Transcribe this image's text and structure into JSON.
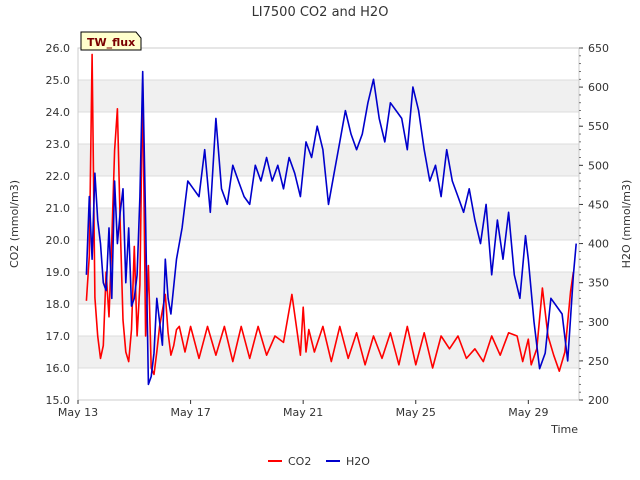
{
  "chart_data": {
    "type": "line",
    "title": "LI7500 CO2 and H2O",
    "badge": "TW_flux",
    "xlabel": "Time",
    "ylabel_left": "CO2 (mmol/m3)",
    "ylabel_right": "H2O (mmol/m3)",
    "x_ticks": [
      "May 13",
      "May 17",
      "May 21",
      "May 25",
      "May 29"
    ],
    "x_range_days": [
      13,
      30.8
    ],
    "y_left": {
      "min": 15.0,
      "max": 26.0,
      "ticks": [
        "15.0",
        "16.0",
        "17.0",
        "18.0",
        "19.0",
        "20.0",
        "21.0",
        "22.0",
        "23.0",
        "24.0",
        "25.0",
        "26.0"
      ]
    },
    "y_right": {
      "min": 200,
      "max": 650,
      "ticks": [
        "200",
        "250",
        "300",
        "350",
        "400",
        "450",
        "500",
        "550",
        "600",
        "650"
      ]
    },
    "grid": true,
    "legend_position": "bottom-center",
    "colors": {
      "co2": "#ff0000",
      "h2o": "#0000cc",
      "band": "#f0f0f0"
    },
    "series": [
      {
        "name": "CO2",
        "axis": "left",
        "x": [
          13.3,
          13.4,
          13.5,
          13.55,
          13.6,
          13.7,
          13.8,
          13.9,
          14.0,
          14.1,
          14.2,
          14.3,
          14.4,
          14.5,
          14.6,
          14.7,
          14.8,
          14.9,
          15.0,
          15.1,
          15.2,
          15.3,
          15.4,
          15.5,
          15.6,
          15.7,
          15.8,
          15.9,
          16.0,
          16.1,
          16.2,
          16.3,
          16.4,
          16.5,
          16.6,
          16.8,
          17.0,
          17.3,
          17.6,
          17.9,
          18.2,
          18.5,
          18.8,
          19.1,
          19.4,
          19.7,
          20.0,
          20.3,
          20.6,
          20.9,
          21.0,
          21.1,
          21.2,
          21.4,
          21.7,
          22.0,
          22.3,
          22.6,
          22.9,
          23.2,
          23.5,
          23.8,
          24.1,
          24.4,
          24.7,
          25.0,
          25.3,
          25.6,
          25.9,
          26.2,
          26.5,
          26.8,
          27.1,
          27.4,
          27.7,
          28.0,
          28.3,
          28.6,
          28.8,
          29.0,
          29.1,
          29.3,
          29.5,
          29.7,
          29.9,
          30.1,
          30.3,
          30.5,
          30.6
        ],
        "values": [
          18.1,
          19.5,
          25.8,
          22.0,
          18.2,
          17.0,
          16.3,
          16.7,
          19.0,
          17.6,
          20.0,
          22.8,
          24.1,
          20.5,
          17.5,
          16.5,
          16.2,
          17.2,
          19.8,
          17.0,
          18.6,
          24.9,
          17.0,
          19.2,
          16.0,
          15.8,
          16.5,
          17.3,
          17.8,
          18.3,
          17.1,
          16.4,
          16.7,
          17.2,
          17.3,
          16.5,
          17.3,
          16.3,
          17.3,
          16.4,
          17.3,
          16.2,
          17.3,
          16.3,
          17.3,
          16.4,
          17.0,
          16.8,
          18.3,
          16.4,
          17.9,
          16.5,
          17.2,
          16.5,
          17.3,
          16.2,
          17.3,
          16.3,
          17.1,
          16.1,
          17.0,
          16.3,
          17.1,
          16.1,
          17.3,
          16.1,
          17.1,
          16.0,
          17.0,
          16.6,
          17.0,
          16.3,
          16.6,
          16.2,
          17.0,
          16.4,
          17.1,
          17.0,
          16.2,
          16.9,
          16.1,
          16.6,
          18.5,
          17.0,
          16.4,
          15.9,
          16.5,
          18.4,
          19.0
        ]
      },
      {
        "name": "H2O",
        "axis": "right",
        "x": [
          13.3,
          13.4,
          13.5,
          13.6,
          13.7,
          13.8,
          13.9,
          14.0,
          14.1,
          14.2,
          14.3,
          14.4,
          14.5,
          14.6,
          14.7,
          14.8,
          14.9,
          15.0,
          15.1,
          15.2,
          15.3,
          15.4,
          15.5,
          15.6,
          15.7,
          15.8,
          15.9,
          16.0,
          16.1,
          16.2,
          16.3,
          16.5,
          16.7,
          16.9,
          17.1,
          17.3,
          17.5,
          17.7,
          17.9,
          18.1,
          18.3,
          18.5,
          18.7,
          18.9,
          19.1,
          19.3,
          19.5,
          19.7,
          19.9,
          20.1,
          20.3,
          20.5,
          20.7,
          20.9,
          21.1,
          21.3,
          21.5,
          21.7,
          21.9,
          22.1,
          22.3,
          22.5,
          22.7,
          22.9,
          23.1,
          23.3,
          23.5,
          23.7,
          23.9,
          24.1,
          24.3,
          24.5,
          24.7,
          24.9,
          25.1,
          25.3,
          25.5,
          25.7,
          25.9,
          26.1,
          26.3,
          26.5,
          26.7,
          26.9,
          27.1,
          27.3,
          27.5,
          27.7,
          27.9,
          28.1,
          28.3,
          28.5,
          28.7,
          28.9,
          29.0,
          29.2,
          29.4,
          29.6,
          29.8,
          30.0,
          30.2,
          30.4,
          30.6,
          30.7
        ],
        "values": [
          360,
          460,
          380,
          490,
          430,
          400,
          350,
          340,
          420,
          330,
          480,
          400,
          440,
          470,
          350,
          420,
          320,
          330,
          360,
          460,
          620,
          430,
          220,
          230,
          260,
          330,
          300,
          270,
          380,
          330,
          310,
          380,
          420,
          480,
          470,
          460,
          520,
          440,
          560,
          470,
          450,
          500,
          480,
          460,
          450,
          500,
          480,
          510,
          480,
          500,
          470,
          510,
          490,
          460,
          530,
          510,
          550,
          520,
          450,
          490,
          530,
          570,
          540,
          520,
          540,
          580,
          610,
          560,
          530,
          580,
          570,
          560,
          520,
          600,
          570,
          520,
          480,
          500,
          460,
          520,
          480,
          460,
          440,
          470,
          430,
          400,
          450,
          360,
          430,
          380,
          440,
          360,
          330,
          410,
          380,
          300,
          240,
          260,
          330,
          320,
          310,
          250,
          360,
          400
        ]
      }
    ]
  },
  "legend": {
    "co2_label": "CO2",
    "h2o_label": "H2O"
  }
}
